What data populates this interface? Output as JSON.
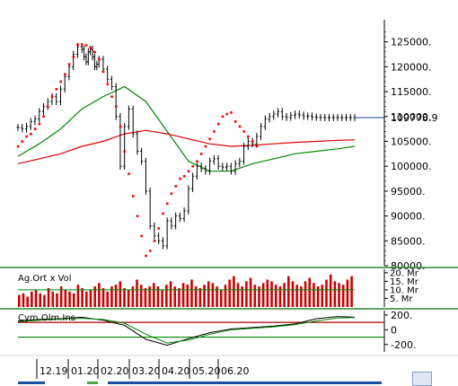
{
  "chart_data": [
    {
      "type": "line",
      "panel": "price",
      "title": "",
      "y_ticks": [
        "125000.",
        "120000.",
        "115000.",
        "110000.",
        "105000.",
        "100000.",
        "95000.",
        "90000.",
        "85000.",
        "80000."
      ],
      "ylim": [
        80000,
        128000
      ],
      "last_price_label": "109778.9",
      "last_price": 109778.9,
      "series": [
        {
          "role": "price",
          "color": "#000000",
          "x": [
            0,
            2,
            4,
            6,
            8,
            10,
            12,
            14,
            16,
            18,
            20,
            22,
            24,
            26,
            28,
            30,
            31,
            32,
            33,
            34,
            35,
            36,
            37,
            38,
            40,
            42,
            44,
            46,
            48,
            50,
            52,
            54,
            56,
            58,
            60,
            62,
            64,
            66,
            68,
            70,
            72,
            74,
            76,
            78,
            80,
            82,
            84,
            86,
            88,
            90,
            92,
            94,
            96,
            98,
            100,
            102,
            104,
            106,
            108,
            110,
            112,
            114,
            116,
            118,
            120,
            122,
            124,
            126,
            128,
            130,
            132,
            134,
            136,
            138,
            140,
            142,
            144,
            146,
            148,
            150,
            152,
            154,
            156,
            158
          ],
          "values": [
            107800,
            107500,
            108000,
            109000,
            109500,
            111000,
            112000,
            113000,
            114000,
            113000,
            115500,
            118000,
            120000,
            122500,
            124000,
            123500,
            122000,
            121000,
            123000,
            123500,
            122000,
            120000,
            120500,
            121500,
            119500,
            117500,
            116000,
            110000,
            100000,
            108000,
            111500,
            106500,
            103000,
            101000,
            95000,
            88000,
            86000,
            85000,
            84000,
            89000,
            88000,
            90000,
            89500,
            91000,
            95500,
            98000,
            100000,
            99500,
            99000,
            101000,
            101500,
            100000,
            99800,
            100000,
            99000,
            100500,
            101000,
            104000,
            105000,
            104500,
            106000,
            108000,
            109500,
            110000,
            110500,
            111000,
            110000,
            109800,
            110200,
            110500,
            110300,
            110000,
            110100,
            109900,
            109800,
            109800,
            109750,
            109780,
            109778.9,
            109778.9,
            109778.9,
            109778.9,
            109778.9,
            109778.9
          ]
        },
        {
          "role": "sar_dots",
          "color": "#ff0000",
          "x": [
            0,
            2,
            4,
            6,
            8,
            10,
            12,
            14,
            16,
            18,
            20,
            22,
            24,
            26,
            28,
            30,
            32,
            34,
            36,
            38,
            40,
            42,
            44,
            46,
            48,
            50,
            52,
            54,
            56,
            58,
            60,
            62,
            64,
            66,
            68,
            70,
            72,
            74,
            76,
            78,
            80,
            82,
            84,
            86,
            88,
            90,
            92,
            94,
            96,
            98,
            100,
            102,
            104,
            106,
            108,
            110,
            112
          ],
          "values": [
            104000,
            105000,
            106000,
            106500,
            107500,
            108500,
            110000,
            112000,
            114000,
            115500,
            117000,
            118500,
            120500,
            122000,
            124500,
            124500,
            124300,
            123800,
            123000,
            121500,
            119000,
            116500,
            114000,
            112000,
            108000,
            103000,
            98500,
            94000,
            90000,
            86000,
            82000,
            83000,
            85000,
            87500,
            90500,
            92500,
            94500,
            96000,
            97500,
            98000,
            99000,
            100000,
            101000,
            102500,
            104000,
            105500,
            107000,
            108500,
            110000,
            110500,
            110800,
            109000,
            108000,
            107000,
            106000,
            105000,
            104000
          ]
        },
        {
          "role": "sma_short",
          "color": "#008800",
          "x": [
            0,
            10,
            20,
            30,
            40,
            50,
            60,
            70,
            80,
            90,
            100,
            110,
            120,
            130,
            140,
            150,
            158
          ],
          "values": [
            102000,
            104500,
            107500,
            111500,
            114000,
            116000,
            113000,
            107000,
            101000,
            99000,
            99000,
            100500,
            101500,
            102500,
            103000,
            103500,
            104000
          ]
        },
        {
          "role": "sma_long",
          "color": "#dd0000",
          "x": [
            0,
            10,
            20,
            30,
            40,
            50,
            60,
            70,
            80,
            90,
            100,
            110,
            120,
            130,
            140,
            150,
            158
          ],
          "values": [
            100500,
            101500,
            102500,
            104000,
            105000,
            106500,
            107200,
            106500,
            105500,
            104500,
            104000,
            104200,
            104500,
            104800,
            105000,
            105200,
            105300
          ]
        }
      ]
    },
    {
      "type": "bar",
      "panel": "volume",
      "title": "Ag.Ort x Vol",
      "y_ticks": [
        "20. Mr",
        "15. Mr",
        "10. Mr",
        "5. Mr"
      ],
      "ylim": [
        0,
        22
      ],
      "colors": {
        "bars": "#cc0000",
        "average": "#008800"
      },
      "values": [
        7,
        8,
        6,
        9,
        10,
        8,
        7,
        11,
        9,
        8,
        12,
        10,
        9,
        8,
        13,
        11,
        9,
        10,
        12,
        14,
        11,
        9,
        12,
        13,
        15,
        11,
        10,
        12,
        16,
        13,
        11,
        12,
        14,
        12,
        10,
        13,
        15,
        12,
        11,
        14,
        13,
        16,
        12,
        11,
        13,
        15,
        14,
        12,
        10,
        13,
        16,
        18,
        14,
        12,
        15,
        17,
        13,
        12,
        14,
        16,
        15,
        13,
        12,
        14,
        18,
        15,
        13,
        12,
        15,
        17,
        14,
        12,
        13,
        16,
        19,
        15,
        14,
        13,
        16,
        18
      ]
    },
    {
      "type": "line",
      "panel": "oscillator",
      "title": "Cym.Olm.Ins",
      "y_ticks": [
        "200.",
        "0",
        "-200."
      ],
      "ylim": [
        -300,
        260
      ],
      "reference_lines": [
        100,
        -100
      ],
      "series": [
        {
          "color": "#000000",
          "x": [
            0,
            10,
            20,
            30,
            40,
            50,
            60,
            70,
            80,
            90,
            100,
            110,
            120,
            130,
            140,
            150,
            158
          ],
          "values": [
            120,
            140,
            150,
            170,
            130,
            60,
            -130,
            -210,
            -120,
            -40,
            10,
            30,
            50,
            80,
            150,
            180,
            170
          ]
        },
        {
          "color": "#008800",
          "x": [
            0,
            10,
            20,
            30,
            40,
            50,
            60,
            70,
            80,
            90,
            100,
            110,
            120,
            130,
            140,
            150,
            158
          ],
          "values": [
            110,
            130,
            145,
            155,
            140,
            90,
            -60,
            -180,
            -140,
            -60,
            0,
            20,
            40,
            70,
            120,
            160,
            165
          ]
        }
      ]
    }
  ],
  "x_axis": {
    "labels": [
      "12.19",
      "01.20",
      "02.20",
      "03.20",
      "04.20",
      "05.20",
      "06.20"
    ],
    "positions": [
      11,
      46,
      79,
      114,
      147,
      181,
      213
    ]
  },
  "colors": {
    "grid_separator": "#2a8a2a",
    "scroll_blue": "#1a4ea0",
    "price_tag_line": "#1a3b9a"
  }
}
